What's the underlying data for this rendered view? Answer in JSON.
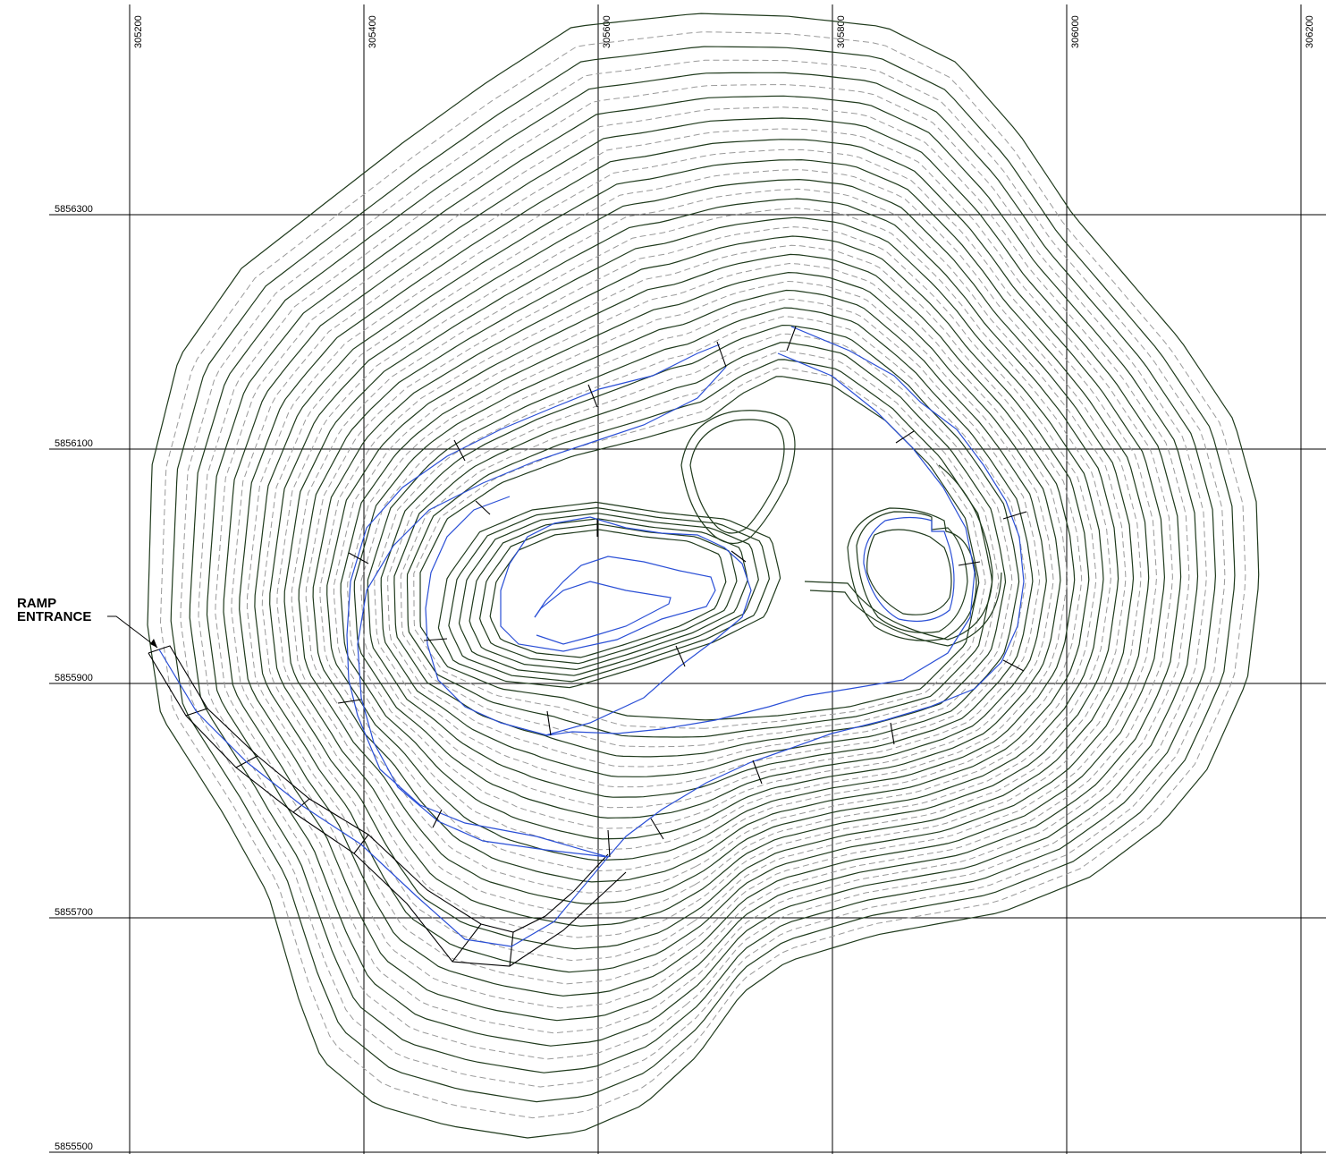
{
  "map": {
    "easting_labels": [
      "305200",
      "305400",
      "305600",
      "305800",
      "306000",
      "306200"
    ],
    "northing_labels": [
      "5856300",
      "5856100",
      "5855900",
      "5855700",
      "5855500"
    ],
    "callout": {
      "line1": "RAMP",
      "line2": "ENTRANCE"
    },
    "colors": {
      "grid": "#000000",
      "contour": "#1f3a1c",
      "dashed_contour": "#9a9a9a",
      "ramp_centerline": "#2a4fd6",
      "background": "#ffffff"
    }
  }
}
